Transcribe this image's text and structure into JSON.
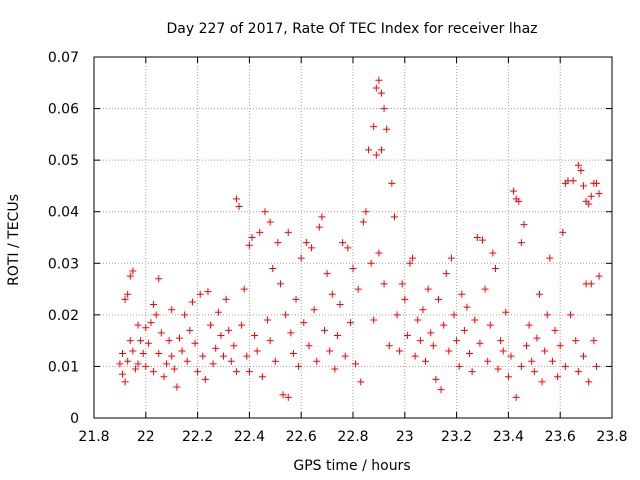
{
  "chart_data": {
    "type": "scatter",
    "title": "Day 227 of 2017, Rate Of TEC Index for receiver lhaz",
    "xlabel": "GPS time / hours",
    "ylabel": "ROTI / TECUs",
    "xlim": [
      21.8,
      23.8
    ],
    "ylim": [
      0,
      0.07
    ],
    "x_ticks": [
      21.8,
      22,
      22.2,
      22.4,
      22.6,
      22.8,
      23,
      23.2,
      23.4,
      23.6,
      23.8
    ],
    "x_tick_labels": [
      "21.8",
      "22",
      "22.2",
      "22.4",
      "22.6",
      "22.8",
      "23",
      "23.2",
      "23.4",
      "23.6",
      "23.8"
    ],
    "y_ticks": [
      0,
      0.01,
      0.02,
      0.03,
      0.04,
      0.05,
      0.06,
      0.07
    ],
    "y_tick_labels": [
      "0",
      "0.01",
      "0.02",
      "0.03",
      "0.04",
      "0.05",
      "0.06",
      "0.07"
    ],
    "grid": true,
    "marker": "+",
    "marker_color": "#ff0000",
    "series": [
      {
        "points": [
          [
            21.9,
            0.0105
          ],
          [
            21.91,
            0.0125
          ],
          [
            21.91,
            0.0085
          ],
          [
            21.92,
            0.023
          ],
          [
            21.92,
            0.007
          ],
          [
            21.93,
            0.024
          ],
          [
            21.93,
            0.011
          ],
          [
            21.94,
            0.015
          ],
          [
            21.94,
            0.0275
          ],
          [
            21.95,
            0.0285
          ],
          [
            21.95,
            0.013
          ],
          [
            21.96,
            0.0095
          ],
          [
            21.97,
            0.018
          ],
          [
            21.97,
            0.0105
          ],
          [
            21.98,
            0.015
          ],
          [
            21.99,
            0.0125
          ],
          [
            22.0,
            0.0175
          ],
          [
            22.0,
            0.01
          ],
          [
            22.01,
            0.0145
          ],
          [
            22.02,
            0.0185
          ],
          [
            22.03,
            0.009
          ],
          [
            22.03,
            0.022
          ],
          [
            22.04,
            0.02
          ],
          [
            22.05,
            0.027
          ],
          [
            22.05,
            0.0125
          ],
          [
            22.06,
            0.0165
          ],
          [
            22.07,
            0.008
          ],
          [
            22.08,
            0.0105
          ],
          [
            22.09,
            0.015
          ],
          [
            22.1,
            0.021
          ],
          [
            22.1,
            0.012
          ],
          [
            22.11,
            0.0095
          ],
          [
            22.12,
            0.006
          ],
          [
            22.13,
            0.0155
          ],
          [
            22.14,
            0.013
          ],
          [
            22.15,
            0.02
          ],
          [
            22.16,
            0.011
          ],
          [
            22.17,
            0.017
          ],
          [
            22.18,
            0.0225
          ],
          [
            22.19,
            0.0145
          ],
          [
            22.2,
            0.009
          ],
          [
            22.21,
            0.024
          ],
          [
            22.22,
            0.012
          ],
          [
            22.23,
            0.0075
          ],
          [
            22.24,
            0.0245
          ],
          [
            22.25,
            0.018
          ],
          [
            22.26,
            0.0105
          ],
          [
            22.27,
            0.0135
          ],
          [
            22.28,
            0.0205
          ],
          [
            22.29,
            0.016
          ],
          [
            22.3,
            0.012
          ],
          [
            22.31,
            0.023
          ],
          [
            22.32,
            0.017
          ],
          [
            22.33,
            0.011
          ],
          [
            22.34,
            0.014
          ],
          [
            22.35,
            0.0425
          ],
          [
            22.35,
            0.009
          ],
          [
            22.36,
            0.041
          ],
          [
            22.37,
            0.018
          ],
          [
            22.38,
            0.025
          ],
          [
            22.39,
            0.012
          ],
          [
            22.4,
            0.0335
          ],
          [
            22.4,
            0.009
          ],
          [
            22.41,
            0.035
          ],
          [
            22.42,
            0.016
          ],
          [
            22.43,
            0.013
          ],
          [
            22.44,
            0.036
          ],
          [
            22.45,
            0.008
          ],
          [
            22.46,
            0.04
          ],
          [
            22.47,
            0.019
          ],
          [
            22.48,
            0.038
          ],
          [
            22.48,
            0.015
          ],
          [
            22.49,
            0.029
          ],
          [
            22.5,
            0.011
          ],
          [
            22.51,
            0.034
          ],
          [
            22.52,
            0.026
          ],
          [
            22.53,
            0.0045
          ],
          [
            22.54,
            0.02
          ],
          [
            22.55,
            0.004
          ],
          [
            22.55,
            0.036
          ],
          [
            22.56,
            0.0165
          ],
          [
            22.57,
            0.0125
          ],
          [
            22.58,
            0.023
          ],
          [
            22.59,
            0.01
          ],
          [
            22.6,
            0.031
          ],
          [
            22.61,
            0.0185
          ],
          [
            22.62,
            0.034
          ],
          [
            22.63,
            0.014
          ],
          [
            22.64,
            0.033
          ],
          [
            22.65,
            0.021
          ],
          [
            22.66,
            0.011
          ],
          [
            22.67,
            0.037
          ],
          [
            22.68,
            0.039
          ],
          [
            22.69,
            0.017
          ],
          [
            22.7,
            0.028
          ],
          [
            22.71,
            0.013
          ],
          [
            22.72,
            0.024
          ],
          [
            22.73,
            0.0095
          ],
          [
            22.74,
            0.016
          ],
          [
            22.75,
            0.022
          ],
          [
            22.76,
            0.034
          ],
          [
            22.77,
            0.012
          ],
          [
            22.78,
            0.033
          ],
          [
            22.79,
            0.0185
          ],
          [
            22.8,
            0.029
          ],
          [
            22.81,
            0.0105
          ],
          [
            22.82,
            0.025
          ],
          [
            22.83,
            0.007
          ],
          [
            22.84,
            0.038
          ],
          [
            22.85,
            0.04
          ],
          [
            22.86,
            0.052
          ],
          [
            22.87,
            0.03
          ],
          [
            22.88,
            0.0565
          ],
          [
            22.88,
            0.019
          ],
          [
            22.89,
            0.064
          ],
          [
            22.89,
            0.051
          ],
          [
            22.9,
            0.0655
          ],
          [
            22.9,
            0.032
          ],
          [
            22.91,
            0.063
          ],
          [
            22.91,
            0.052
          ],
          [
            22.92,
            0.06
          ],
          [
            22.92,
            0.026
          ],
          [
            22.93,
            0.056
          ],
          [
            22.94,
            0.014
          ],
          [
            22.95,
            0.0455
          ],
          [
            22.96,
            0.039
          ],
          [
            22.97,
            0.02
          ],
          [
            22.98,
            0.013
          ],
          [
            22.99,
            0.026
          ],
          [
            23.0,
            0.023
          ],
          [
            23.01,
            0.016
          ],
          [
            23.02,
            0.03
          ],
          [
            23.03,
            0.031
          ],
          [
            23.04,
            0.012
          ],
          [
            23.05,
            0.019
          ],
          [
            23.06,
            0.015
          ],
          [
            23.07,
            0.021
          ],
          [
            23.08,
            0.011
          ],
          [
            23.09,
            0.025
          ],
          [
            23.1,
            0.0165
          ],
          [
            23.11,
            0.014
          ],
          [
            23.12,
            0.0075
          ],
          [
            23.13,
            0.023
          ],
          [
            23.14,
            0.0055
          ],
          [
            23.15,
            0.018
          ],
          [
            23.16,
            0.028
          ],
          [
            23.17,
            0.013
          ],
          [
            23.18,
            0.031
          ],
          [
            23.19,
            0.02
          ],
          [
            23.2,
            0.015
          ],
          [
            23.21,
            0.01
          ],
          [
            23.22,
            0.024
          ],
          [
            23.23,
            0.017
          ],
          [
            23.24,
            0.0215
          ],
          [
            23.25,
            0.0125
          ],
          [
            23.26,
            0.009
          ],
          [
            23.27,
            0.019
          ],
          [
            23.28,
            0.035
          ],
          [
            23.29,
            0.0145
          ],
          [
            23.3,
            0.0345
          ],
          [
            23.31,
            0.025
          ],
          [
            23.32,
            0.011
          ],
          [
            23.33,
            0.018
          ],
          [
            23.34,
            0.032
          ],
          [
            23.35,
            0.029
          ],
          [
            23.36,
            0.0095
          ],
          [
            23.37,
            0.015
          ],
          [
            23.38,
            0.013
          ],
          [
            23.39,
            0.0205
          ],
          [
            23.4,
            0.008
          ],
          [
            23.41,
            0.012
          ],
          [
            23.42,
            0.044
          ],
          [
            23.43,
            0.0425
          ],
          [
            23.43,
            0.004
          ],
          [
            23.44,
            0.042
          ],
          [
            23.45,
            0.034
          ],
          [
            23.45,
            0.01
          ],
          [
            23.46,
            0.0375
          ],
          [
            23.47,
            0.014
          ],
          [
            23.48,
            0.018
          ],
          [
            23.49,
            0.011
          ],
          [
            23.5,
            0.009
          ],
          [
            23.51,
            0.0155
          ],
          [
            23.52,
            0.024
          ],
          [
            23.53,
            0.007
          ],
          [
            23.54,
            0.013
          ],
          [
            23.55,
            0.02
          ],
          [
            23.56,
            0.031
          ],
          [
            23.57,
            0.011
          ],
          [
            23.58,
            0.017
          ],
          [
            23.59,
            0.008
          ],
          [
            23.6,
            0.014
          ],
          [
            23.61,
            0.036
          ],
          [
            23.62,
            0.0455
          ],
          [
            23.62,
            0.01
          ],
          [
            23.63,
            0.046
          ],
          [
            23.64,
            0.02
          ],
          [
            23.65,
            0.046
          ],
          [
            23.66,
            0.015
          ],
          [
            23.67,
            0.049
          ],
          [
            23.67,
            0.009
          ],
          [
            23.68,
            0.048
          ],
          [
            23.69,
            0.045
          ],
          [
            23.69,
            0.012
          ],
          [
            23.7,
            0.042
          ],
          [
            23.7,
            0.026
          ],
          [
            23.71,
            0.0415
          ],
          [
            23.71,
            0.007
          ],
          [
            23.72,
            0.043
          ],
          [
            23.72,
            0.026
          ],
          [
            23.73,
            0.0455
          ],
          [
            23.73,
            0.015
          ],
          [
            23.74,
            0.0455
          ],
          [
            23.74,
            0.01
          ],
          [
            23.75,
            0.0435
          ],
          [
            23.75,
            0.0275
          ]
        ]
      }
    ]
  }
}
